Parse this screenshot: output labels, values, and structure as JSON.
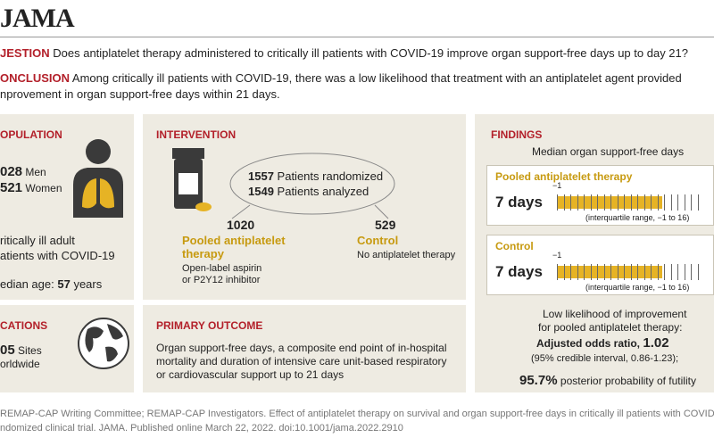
{
  "header": {
    "logo": "JAMA"
  },
  "question": {
    "label": "JESTION",
    "text": "Does antiplatelet therapy administered to critically ill patients with COVID-19 improve organ support-free days up to day 21?"
  },
  "conclusion": {
    "label": "ONCLUSION",
    "lines": [
      "Among critically ill patients with COVID-19, there was a low likelihood that treatment with an antiplatelet agent provided",
      "nprovement in organ support-free days within 21 days."
    ]
  },
  "population": {
    "title": "OPULATION",
    "men": "028",
    "men_label": "Men",
    "women": "521",
    "women_label": "Women",
    "desc": [
      "ritically ill adult",
      "atients with COVID-19"
    ],
    "age_label": "edian age:",
    "age": "57",
    "age_unit": "years"
  },
  "locations": {
    "title": "CATIONS",
    "sites": "05",
    "sites_label": "Sites",
    "line2": "orldwide"
  },
  "intervention": {
    "title": "INTERVENTION",
    "randomized": 1557,
    "randomized_label": "Patients randomized",
    "analyzed": 1549,
    "analyzed_label": "Patients analyzed",
    "groups": [
      {
        "n": 1020,
        "name": [
          "Pooled antiplatelet",
          "therapy"
        ],
        "desc": [
          "Open-label aspirin",
          "or P2Y12 inhibitor"
        ]
      },
      {
        "n": 529,
        "name": [
          "Control"
        ],
        "desc": [
          "No antiplatelet therapy"
        ]
      }
    ]
  },
  "primary_outcome": {
    "title": "PRIMARY OUTCOME",
    "lines": [
      "Organ support-free days, a composite end point of in-hospital",
      "mortality and duration of intensive care unit-based respiratory",
      "or cardiovascular support up to 21 days"
    ]
  },
  "findings": {
    "title": "FINDINGS",
    "subtitle": "Median organ support-free days",
    "panels": [
      {
        "name": "Pooled antiplatelet therapy",
        "median": "7 days",
        "axis_min": "−1",
        "iqr": "(interquartile range, −1 to 16)"
      },
      {
        "name": "Control",
        "median": "7 days",
        "axis_min": "−1",
        "iqr": "(interquartile range, −1 to 16)"
      }
    ],
    "summary": {
      "line1": "Low likelihood of improvement",
      "line2": "for pooled antiplatelet therapy:",
      "or_label": "Adjusted odds ratio,",
      "or_value": "1.02",
      "ci": "(95% credible interval, 0.86-1.23);",
      "futility_value": "95.7%",
      "futility_label": "posterior probability of futility"
    }
  },
  "footer": {
    "lines": [
      "REMAP-CAP Writing Committee; REMAP-CAP Investigators. Effect of antiplatelet therapy on survival and organ support-free days in critically ill patients with COVID-",
      "ndomized clinical trial. JAMA. Published online March 22, 2022. doi:10.1001/jama.2022.2910"
    ]
  }
}
